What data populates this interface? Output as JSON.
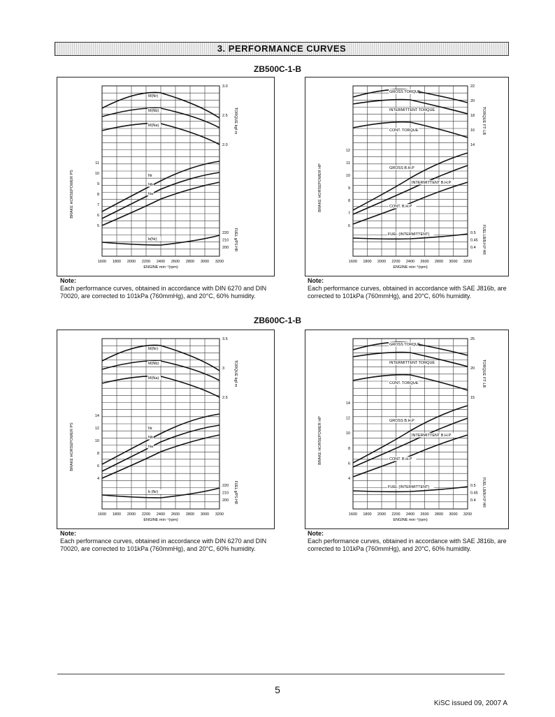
{
  "header": {
    "section_title": "3.   PERFORMANCE CURVES"
  },
  "sections": [
    {
      "model": "ZB500C-1-B",
      "din": {
        "ylabel_left": "BRAKE HORSEPOWER PS",
        "ylabel_right_torque": "TORQUE kgf·m",
        "ylabel_right_fuel": "FUEL g/PS·HR",
        "xlabel": "ENGINE min⁻¹(rpm)",
        "x_ticks": [
          "1600",
          "1800",
          "2000",
          "2200",
          "2400",
          "2600",
          "2800",
          "3000",
          "3200"
        ],
        "hp_ticks": [
          "5",
          "6",
          "7",
          "8",
          "9",
          "10",
          "11"
        ],
        "torque_ticks": [
          "3.0",
          "2.5",
          "2.0"
        ],
        "fuel_ticks": [
          "220",
          "210",
          "200"
        ],
        "labels": [
          "M(Nr)",
          "M(Nb)",
          "M(Na)",
          "Nr",
          "Nb",
          "Na",
          "b(Nr)"
        ]
      },
      "sae": {
        "ylabel_left": "BRAKE HORSEPOWER HP",
        "ylabel_right_torque": "TORQUE FT·LB",
        "ylabel_right_fuel": "FUEL LB/B.H.P HR",
        "xlabel": "ENGINE min⁻¹(rpm)",
        "x_ticks": [
          "1600",
          "1800",
          "2000",
          "2200",
          "2400",
          "2600",
          "2800",
          "3000",
          "3200"
        ],
        "hp_ticks": [
          "6",
          "7",
          "8",
          "9",
          "10",
          "11",
          "12"
        ],
        "torque_ticks": [
          "22",
          "20",
          "18",
          "16",
          "14"
        ],
        "fuel_ticks": [
          "0.5",
          "0.45",
          "0.4"
        ],
        "labels": [
          "GROSS TORQUE",
          "INTERMITTENT TORQUE",
          "CONT. TORQUE",
          "GROSS B.H.P",
          "INTERMITTENT B.H.P",
          "CONT. B.H.P",
          "FUEL (INTERMITTENT)"
        ]
      },
      "note_din": {
        "label": "Note:",
        "text": "Each performance curves, obtained in accordance with DIN 6270 and DIN 70020, are corrected to 101kPa (760mmHg), and 20°C, 60% humidity."
      },
      "note_sae": {
        "label": "Note:",
        "text": "Each performance curves, obtained in accordance with SAE J816b, are corrected to 101kPa (760mmHg), and 20°C, 60% humidity."
      }
    },
    {
      "model": "ZB600C-1-B",
      "din": {
        "ylabel_left": "BRAKE HORSEPOWER PS",
        "ylabel_right_torque": "TORQUE kgf·m",
        "ylabel_right_fuel": "FUEL g/PS·HR",
        "xlabel": "ENGINE min⁻¹(rpm)",
        "x_ticks": [
          "1600",
          "1800",
          "2000",
          "2200",
          "2400",
          "2600",
          "2800",
          "3000",
          "3200"
        ],
        "hp_ticks": [
          "4",
          "6",
          "8",
          "10",
          "12",
          "14"
        ],
        "torque_ticks": [
          "3.5",
          "3",
          "2.5"
        ],
        "fuel_ticks": [
          "220",
          "210",
          "200"
        ],
        "labels": [
          "M(Nr)",
          "M(Nb)",
          "M(Na)",
          "Nr",
          "Nb",
          "Na",
          "b (Nr)"
        ]
      },
      "sae": {
        "ylabel_left": "BRAKE HORSEPOWER HP",
        "ylabel_right_torque": "TORQUE FT·LB",
        "ylabel_right_fuel": "FUEL LB/B.H.P HR",
        "xlabel": "ENGINE min⁻¹(rpm)",
        "x_ticks": [
          "1600",
          "1800",
          "2000",
          "2200",
          "2400",
          "2600",
          "2800",
          "3000",
          "3200"
        ],
        "hp_ticks": [
          "4",
          "6",
          "8",
          "10",
          "12",
          "14"
        ],
        "torque_ticks": [
          "25",
          "20",
          "15"
        ],
        "fuel_ticks": [
          "0.5",
          "0.45",
          "0.4"
        ],
        "labels": [
          "GROSS TORQUE",
          "INTERMITTENT TORQUE",
          "CONT. TORQUE",
          "GROSS B.H.P",
          "INTERMITTENT B.H.P",
          "CONT. B.H.P",
          "FUEL (INTERMITTENT)"
        ]
      },
      "note_din": {
        "label": "Note:",
        "text": "Each performance curves, obtained in accordance with DIN 6270 and DIN 70020, are corrected to 101kPa (760mmHg), and 20°C, 60% humidity."
      },
      "note_sae": {
        "label": "Note:",
        "text": "Each performance curves, obtained in accordance with SAE J816b, are corrected to 101kPa (760mmHg), and 20°C, 60% humidity."
      }
    }
  ],
  "footer": {
    "page_number": "5",
    "issued": "KiSC issued 09, 2007 A"
  }
}
